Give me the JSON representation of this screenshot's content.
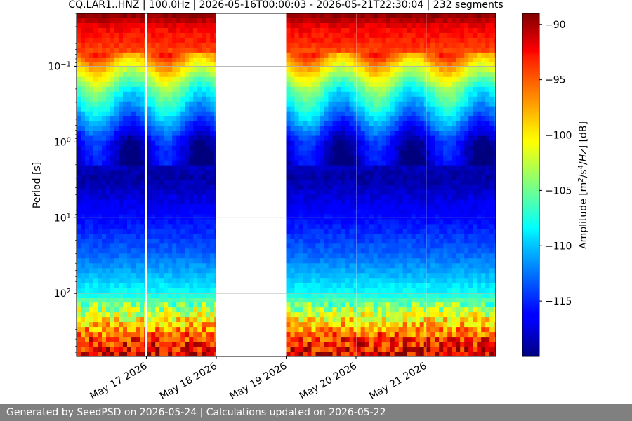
{
  "chart_data": {
    "type": "heatmap",
    "title": "CQ.LAR1..HNZ | 100.0Hz | 2026-05-16T00:00:03 - 2026-05-21T22:30:04 | 232 segments",
    "ylabel": "Period [s]",
    "colorbar_label": "Amplitude [m²/s⁴/Hz] [dB]",
    "y_scale": "log",
    "y_inverted": true,
    "ylim": [
      0.02,
      680
    ],
    "y_ticks": [
      {
        "value": 0.1,
        "base": "10",
        "exp": "−1"
      },
      {
        "value": 1,
        "base": "10",
        "exp": "0"
      },
      {
        "value": 10,
        "base": "10",
        "exp": "1"
      },
      {
        "value": 100,
        "base": "10",
        "exp": "2"
      }
    ],
    "xlim": [
      "2026-05-16T00:00:00",
      "2026-05-21T23:59:59"
    ],
    "x_tick_labels": [
      "May 17 2026",
      "May 18 2026",
      "May 19 2026",
      "May 20 2026",
      "May 21 2026"
    ],
    "x_tick_dates": [
      "2026-05-17",
      "2026-05-18",
      "2026-05-19",
      "2026-05-20",
      "2026-05-21"
    ],
    "colorbar_range": [
      -120,
      -89
    ],
    "colorbar_ticks": [
      -90,
      -95,
      -100,
      -105,
      -110,
      -115
    ],
    "colorbar_tick_labels": [
      "−90",
      "−95",
      "−100",
      "−105",
      "−110",
      "−115"
    ],
    "colormap": "jet",
    "grid": true,
    "data_segments": [
      {
        "start": "2026-05-16T00:00:00",
        "end": "2026-05-16T23:30:00"
      },
      {
        "start": "2026-05-17T00:10:00",
        "end": "2026-05-17T23:50:00"
      },
      {
        "start": "2026-05-19T00:00:00",
        "end": "2026-05-20T00:00:00"
      },
      {
        "start": "2026-05-20T00:10:00",
        "end": "2026-05-21T00:00:00"
      },
      {
        "start": "2026-05-21T00:10:00",
        "end": "2026-05-21T23:59:00"
      }
    ],
    "amplitude_profile": [
      {
        "period": 0.02,
        "value": -89
      },
      {
        "period": 0.03,
        "value": -92
      },
      {
        "period": 0.06,
        "value": -94
      },
      {
        "period": 0.1,
        "value": -99
      },
      {
        "period": 0.2,
        "value": -106
      },
      {
        "period": 0.5,
        "value": -112
      },
      {
        "period": 1,
        "value": -117
      },
      {
        "period": 3,
        "value": -119
      },
      {
        "period": 10,
        "value": -116
      },
      {
        "period": 30,
        "value": -113
      },
      {
        "period": 100,
        "value": -108
      },
      {
        "period": 200,
        "value": -101
      },
      {
        "period": 400,
        "value": -94
      },
      {
        "period": 680,
        "value": -91
      }
    ],
    "vertical_gridlines": false,
    "horizontal_gridlines": true
  },
  "footer": {
    "text": "Generated by SeedPSD on 2026-05-24 | Calculations updated on 2026-05-22"
  }
}
